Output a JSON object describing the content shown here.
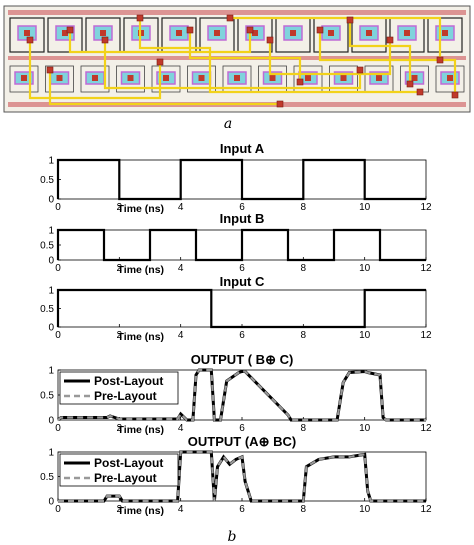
{
  "captions": {
    "a": "a",
    "b": "b"
  },
  "layout_image": {
    "description_tag": "layout"
  },
  "chart_data": [
    {
      "type": "line",
      "title": "Input A",
      "xlabel": "Time (ns)",
      "xlim": [
        0,
        12
      ],
      "ylim": [
        0,
        1
      ],
      "xticks": [
        "0",
        "2",
        "4",
        "6",
        "8",
        "10",
        "12"
      ],
      "yticks": [
        "0",
        "0.5",
        "1"
      ],
      "series": [
        {
          "x": [
            0,
            0,
            2,
            2,
            4,
            4,
            6,
            6,
            8,
            8,
            10,
            10,
            12
          ],
          "y": [
            0,
            1,
            1,
            0,
            0,
            1,
            1,
            0,
            0,
            1,
            1,
            0,
            0
          ]
        }
      ]
    },
    {
      "type": "line",
      "title": "Input B",
      "xlabel": "Time (ns)",
      "xlim": [
        0,
        12
      ],
      "ylim": [
        0,
        1
      ],
      "xticks": [
        "0",
        "2",
        "4",
        "6",
        "8",
        "10",
        "12"
      ],
      "yticks": [
        "0",
        "0.5",
        "1"
      ],
      "series": [
        {
          "x": [
            0,
            0,
            1.5,
            1.5,
            3,
            3,
            4.5,
            4.5,
            6,
            6,
            7.5,
            7.5,
            9,
            9,
            10.5,
            10.5,
            12
          ],
          "y": [
            0,
            1,
            1,
            0,
            0,
            1,
            1,
            0,
            0,
            1,
            1,
            0,
            0,
            1,
            1,
            0,
            0
          ]
        }
      ]
    },
    {
      "type": "line",
      "title": "Input C",
      "xlabel": "Time (ns)",
      "xlim": [
        0,
        12
      ],
      "ylim": [
        0,
        1
      ],
      "xticks": [
        "0",
        "2",
        "4",
        "6",
        "8",
        "10",
        "12"
      ],
      "yticks": [
        "0",
        "0.5",
        "1"
      ],
      "series": [
        {
          "x": [
            0,
            0,
            5,
            5,
            10,
            10,
            12
          ],
          "y": [
            0,
            1,
            1,
            0,
            0,
            1,
            1
          ]
        }
      ]
    },
    {
      "type": "line",
      "title": "OUTPUT ( B⊕ C)",
      "xlabel": "Time (ns)",
      "xlim": [
        0,
        12
      ],
      "ylim": [
        0,
        1
      ],
      "xticks": [
        "0",
        "2",
        "4",
        "6",
        "8",
        "10",
        "12"
      ],
      "yticks": [
        "0",
        "0.5",
        "1"
      ],
      "legend": [
        "Post-Layout",
        "Pre-Layout"
      ],
      "legend_position": "top-left",
      "series": [
        {
          "name": "Post-Layout",
          "x": [
            0,
            0.1,
            1.6,
            1.7,
            2.0,
            3.9,
            4.0,
            4.2,
            4.4,
            4.5,
            4.6,
            4.7,
            5.0,
            5.1,
            5.3,
            5.5,
            5.9,
            6.0,
            6.1,
            7.5,
            7.6,
            7.7,
            9.0,
            9.1,
            9.3,
            9.5,
            10.0,
            10.1,
            10.5,
            10.6,
            10.7,
            12
          ],
          "y": [
            0,
            0.05,
            0.05,
            0.08,
            0.02,
            0.02,
            0.12,
            0.0,
            0.0,
            0.9,
            1.0,
            1.0,
            1.0,
            0.0,
            0.0,
            0.78,
            0.95,
            0.97,
            0.97,
            0.1,
            0.0,
            0.0,
            0.0,
            0.0,
            0.75,
            0.95,
            0.97,
            0.95,
            0.9,
            0.05,
            0.0,
            0.0
          ]
        },
        {
          "name": "Pre-Layout",
          "x": [
            0,
            0.1,
            1.6,
            1.7,
            2.0,
            3.9,
            4.0,
            4.2,
            4.4,
            4.5,
            4.6,
            4.7,
            5.0,
            5.1,
            5.3,
            5.5,
            5.9,
            6.0,
            6.1,
            7.5,
            7.6,
            7.7,
            9.0,
            9.1,
            9.3,
            9.5,
            10.0,
            10.1,
            10.5,
            10.6,
            10.7,
            12
          ],
          "y": [
            0,
            0.05,
            0.05,
            0.08,
            0.02,
            0.02,
            0.12,
            0.0,
            0.0,
            0.9,
            1.0,
            1.0,
            1.0,
            0.0,
            0.0,
            0.78,
            0.95,
            0.97,
            0.97,
            0.1,
            0.0,
            0.0,
            0.0,
            0.0,
            0.75,
            0.95,
            0.97,
            0.95,
            0.9,
            0.05,
            0.0,
            0.0
          ]
        }
      ]
    },
    {
      "type": "line",
      "title": "OUTPUT (A⊕ BC)",
      "xlabel": "Time (ns)",
      "xlim": [
        0,
        12
      ],
      "ylim": [
        0,
        1
      ],
      "xticks": [
        "0",
        "2",
        "4",
        "6",
        "8",
        "10",
        "12"
      ],
      "yticks": [
        "0",
        "0.5",
        "1"
      ],
      "legend": [
        "Post-Layout",
        "Pre-Layout"
      ],
      "legend_position": "top-left",
      "series": [
        {
          "name": "Post-Layout",
          "x": [
            0,
            0.05,
            1.5,
            1.6,
            2.0,
            2.1,
            3.9,
            4.0,
            4.2,
            4.4,
            5.0,
            5.1,
            5.2,
            5.4,
            5.6,
            5.8,
            6.0,
            6.1,
            6.3,
            7.5,
            7.6,
            7.8,
            8.0,
            8.1,
            8.5,
            9.0,
            9.5,
            10.0,
            10.1,
            10.2,
            12
          ],
          "y": [
            0,
            0,
            0,
            0.1,
            0.1,
            0.0,
            0.0,
            1.0,
            1.0,
            1.0,
            1.0,
            0.0,
            0.7,
            0.9,
            0.75,
            0.85,
            0.9,
            0.4,
            0.0,
            0.0,
            0.0,
            0.0,
            0.0,
            0.7,
            0.85,
            0.9,
            0.9,
            0.95,
            0.2,
            0.0,
            0.0
          ]
        },
        {
          "name": "Pre-Layout",
          "x": [
            0,
            0.05,
            1.5,
            1.6,
            2.0,
            2.1,
            3.9,
            4.0,
            4.2,
            4.4,
            5.0,
            5.1,
            5.2,
            5.4,
            5.6,
            5.8,
            6.0,
            6.1,
            6.3,
            7.5,
            7.6,
            7.8,
            8.0,
            8.1,
            8.5,
            9.0,
            9.5,
            10.0,
            10.1,
            10.2,
            12
          ],
          "y": [
            0,
            0,
            0,
            0.1,
            0.1,
            0.0,
            0.0,
            1.0,
            1.0,
            1.0,
            1.0,
            0.0,
            0.7,
            0.9,
            0.75,
            0.85,
            0.9,
            0.4,
            0.0,
            0.0,
            0.0,
            0.0,
            0.0,
            0.7,
            0.85,
            0.9,
            0.9,
            0.95,
            0.2,
            0.0,
            0.0
          ]
        }
      ]
    }
  ],
  "colors": {
    "post_layout": "#000000",
    "pre_layout": "#999999",
    "layout_yellow": "#f2d21a",
    "layout_red": "#c0392b",
    "layout_cyan": "#7fd3dc",
    "layout_magenta": "#c06ad6",
    "layout_bg": "#f3f0e8"
  }
}
